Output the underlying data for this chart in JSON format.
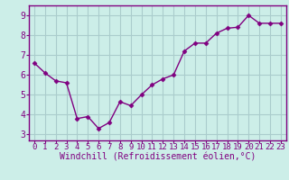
{
  "x": [
    0,
    1,
    2,
    3,
    4,
    5,
    6,
    7,
    8,
    9,
    10,
    11,
    12,
    13,
    14,
    15,
    16,
    17,
    18,
    19,
    20,
    21,
    22,
    23
  ],
  "y": [
    6.6,
    6.1,
    5.7,
    5.6,
    3.8,
    3.9,
    3.3,
    3.6,
    4.65,
    4.45,
    5.0,
    5.5,
    5.8,
    6.0,
    7.2,
    7.6,
    7.6,
    8.1,
    8.35,
    8.4,
    9.0,
    8.6,
    8.6,
    8.6
  ],
  "line_color": "#800080",
  "marker": "D",
  "marker_size": 2.5,
  "bg_color": "#cceee8",
  "grid_color": "#aacccc",
  "xlabel": "Windchill (Refroidissement éolien,°C)",
  "ylabel_ticks": [
    3,
    4,
    5,
    6,
    7,
    8,
    9
  ],
  "xtick_labels": [
    "0",
    "1",
    "2",
    "3",
    "4",
    "5",
    "6",
    "7",
    "8",
    "9",
    "10",
    "11",
    "12",
    "13",
    "14",
    "15",
    "16",
    "17",
    "18",
    "19",
    "20",
    "21",
    "22",
    "23"
  ],
  "ylim": [
    2.7,
    9.5
  ],
  "xlim": [
    -0.5,
    23.5
  ],
  "axis_color": "#800080",
  "tick_fontsize": 6.5,
  "xlabel_fontsize": 7.0,
  "line_width": 1.0
}
